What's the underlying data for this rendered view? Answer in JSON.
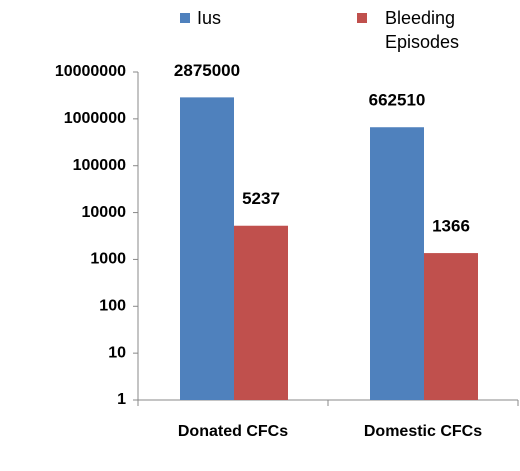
{
  "chart_data": {
    "type": "bar",
    "log_scale": true,
    "categories": [
      "Donated CFCs",
      "Domestic CFCs"
    ],
    "series": [
      {
        "name": "Ius",
        "color": "#4f81bd",
        "values": [
          2875000,
          662510
        ]
      },
      {
        "name": "Bleeding Episodes",
        "color": "#c0504d",
        "values": [
          5237,
          1366
        ]
      }
    ],
    "ylim": [
      1,
      10000000
    ],
    "yticks": [
      1,
      10,
      100,
      1000,
      10000,
      100000,
      1000000,
      10000000
    ],
    "legend": "top"
  }
}
